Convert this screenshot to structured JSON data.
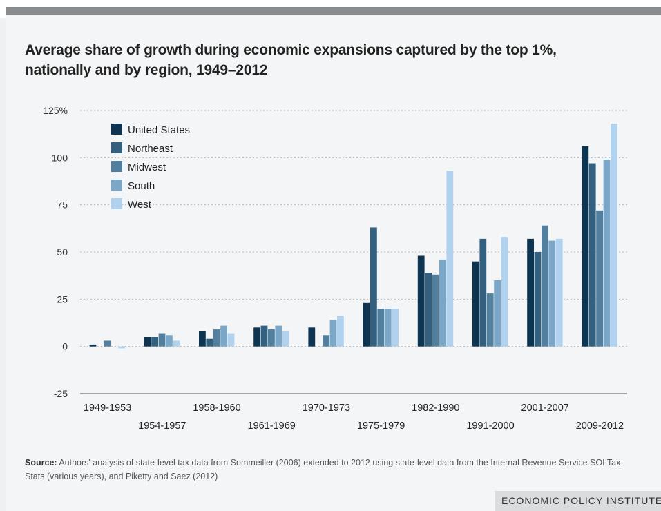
{
  "title_line1": "Average share of growth during economic expansions captured by the top 1%,",
  "title_line2": "nationally and by region, 1949–2012",
  "source_label": "Source:",
  "source_text": " Authors' analysis of state-level tax data from Sommeiller (2006) extended to 2012 using state-level data from the Internal Revenue Service SOI Tax Stats (various years), and Piketty and Saez (2012)",
  "footer": "ECONOMIC POLICY INSTITUTE",
  "chart_data": {
    "type": "bar",
    "title": "Average share of growth during economic expansions captured by the top 1%, nationally and by region, 1949–2012",
    "xlabel": "",
    "ylabel": "",
    "ylim": [
      -25,
      125
    ],
    "yticks": [
      -25,
      0,
      25,
      50,
      75,
      100,
      125
    ],
    "ytick_labels": [
      "-25",
      "0",
      "25",
      "50",
      "75",
      "100",
      "125%"
    ],
    "grid": true,
    "legend_position": "top-left",
    "categories": [
      "1949-1953",
      "1954-1957",
      "1958-1960",
      "1961-1969",
      "1970-1973",
      "1975-1979",
      "1982-1990",
      "1991-2000",
      "2001-2007",
      "2009-2012"
    ],
    "series": [
      {
        "name": "United States",
        "color": "#0d3450",
        "values": [
          1,
          5,
          8,
          10,
          10,
          23,
          48,
          45,
          57,
          106
        ]
      },
      {
        "name": "Northeast",
        "color": "#33607f",
        "values": [
          0,
          5,
          4,
          11,
          0,
          63,
          39,
          57,
          50,
          97
        ]
      },
      {
        "name": "Midwest",
        "color": "#527f9e",
        "values": [
          3,
          7,
          9,
          9,
          6,
          20,
          38,
          28,
          64,
          72
        ]
      },
      {
        "name": "South",
        "color": "#7aa6c8",
        "values": [
          0,
          6,
          11,
          11,
          14,
          20,
          46,
          35,
          56,
          99
        ]
      },
      {
        "name": "West",
        "color": "#b0d2ef",
        "values": [
          -1,
          3,
          7,
          8,
          16,
          20,
          93,
          58,
          57,
          118
        ]
      }
    ]
  }
}
